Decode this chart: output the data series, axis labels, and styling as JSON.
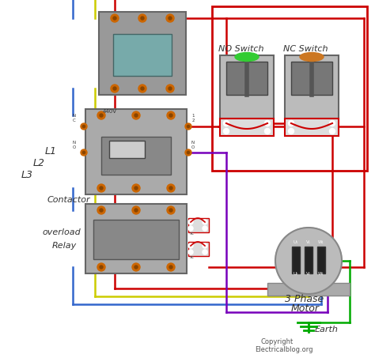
{
  "bg_color": "#FFFFFF",
  "border_color": "#CC0000",
  "wire_red": "#CC0000",
  "wire_blue": "#3366CC",
  "wire_yellow": "#CCCC00",
  "wire_green": "#00AA00",
  "wire_purple": "#7700BB",
  "comp_fill": "#AAAAAA",
  "comp_edge": "#666666",
  "comp_dark": "#888888",
  "screw_color": "#CC6600",
  "label_L1": "L1",
  "label_L2": "L2",
  "label_L3": "L3",
  "label_contactor": "Contactor",
  "label_overload1": "overload",
  "label_overload2": "Relay",
  "label_no": "NO Switch",
  "label_nc": "NC Switch",
  "label_motor1": "3 Phase",
  "label_motor2": "Motor",
  "label_earth": "Earth",
  "label_copy1": "Copyright",
  "label_copy2": "Electricalblog.org"
}
